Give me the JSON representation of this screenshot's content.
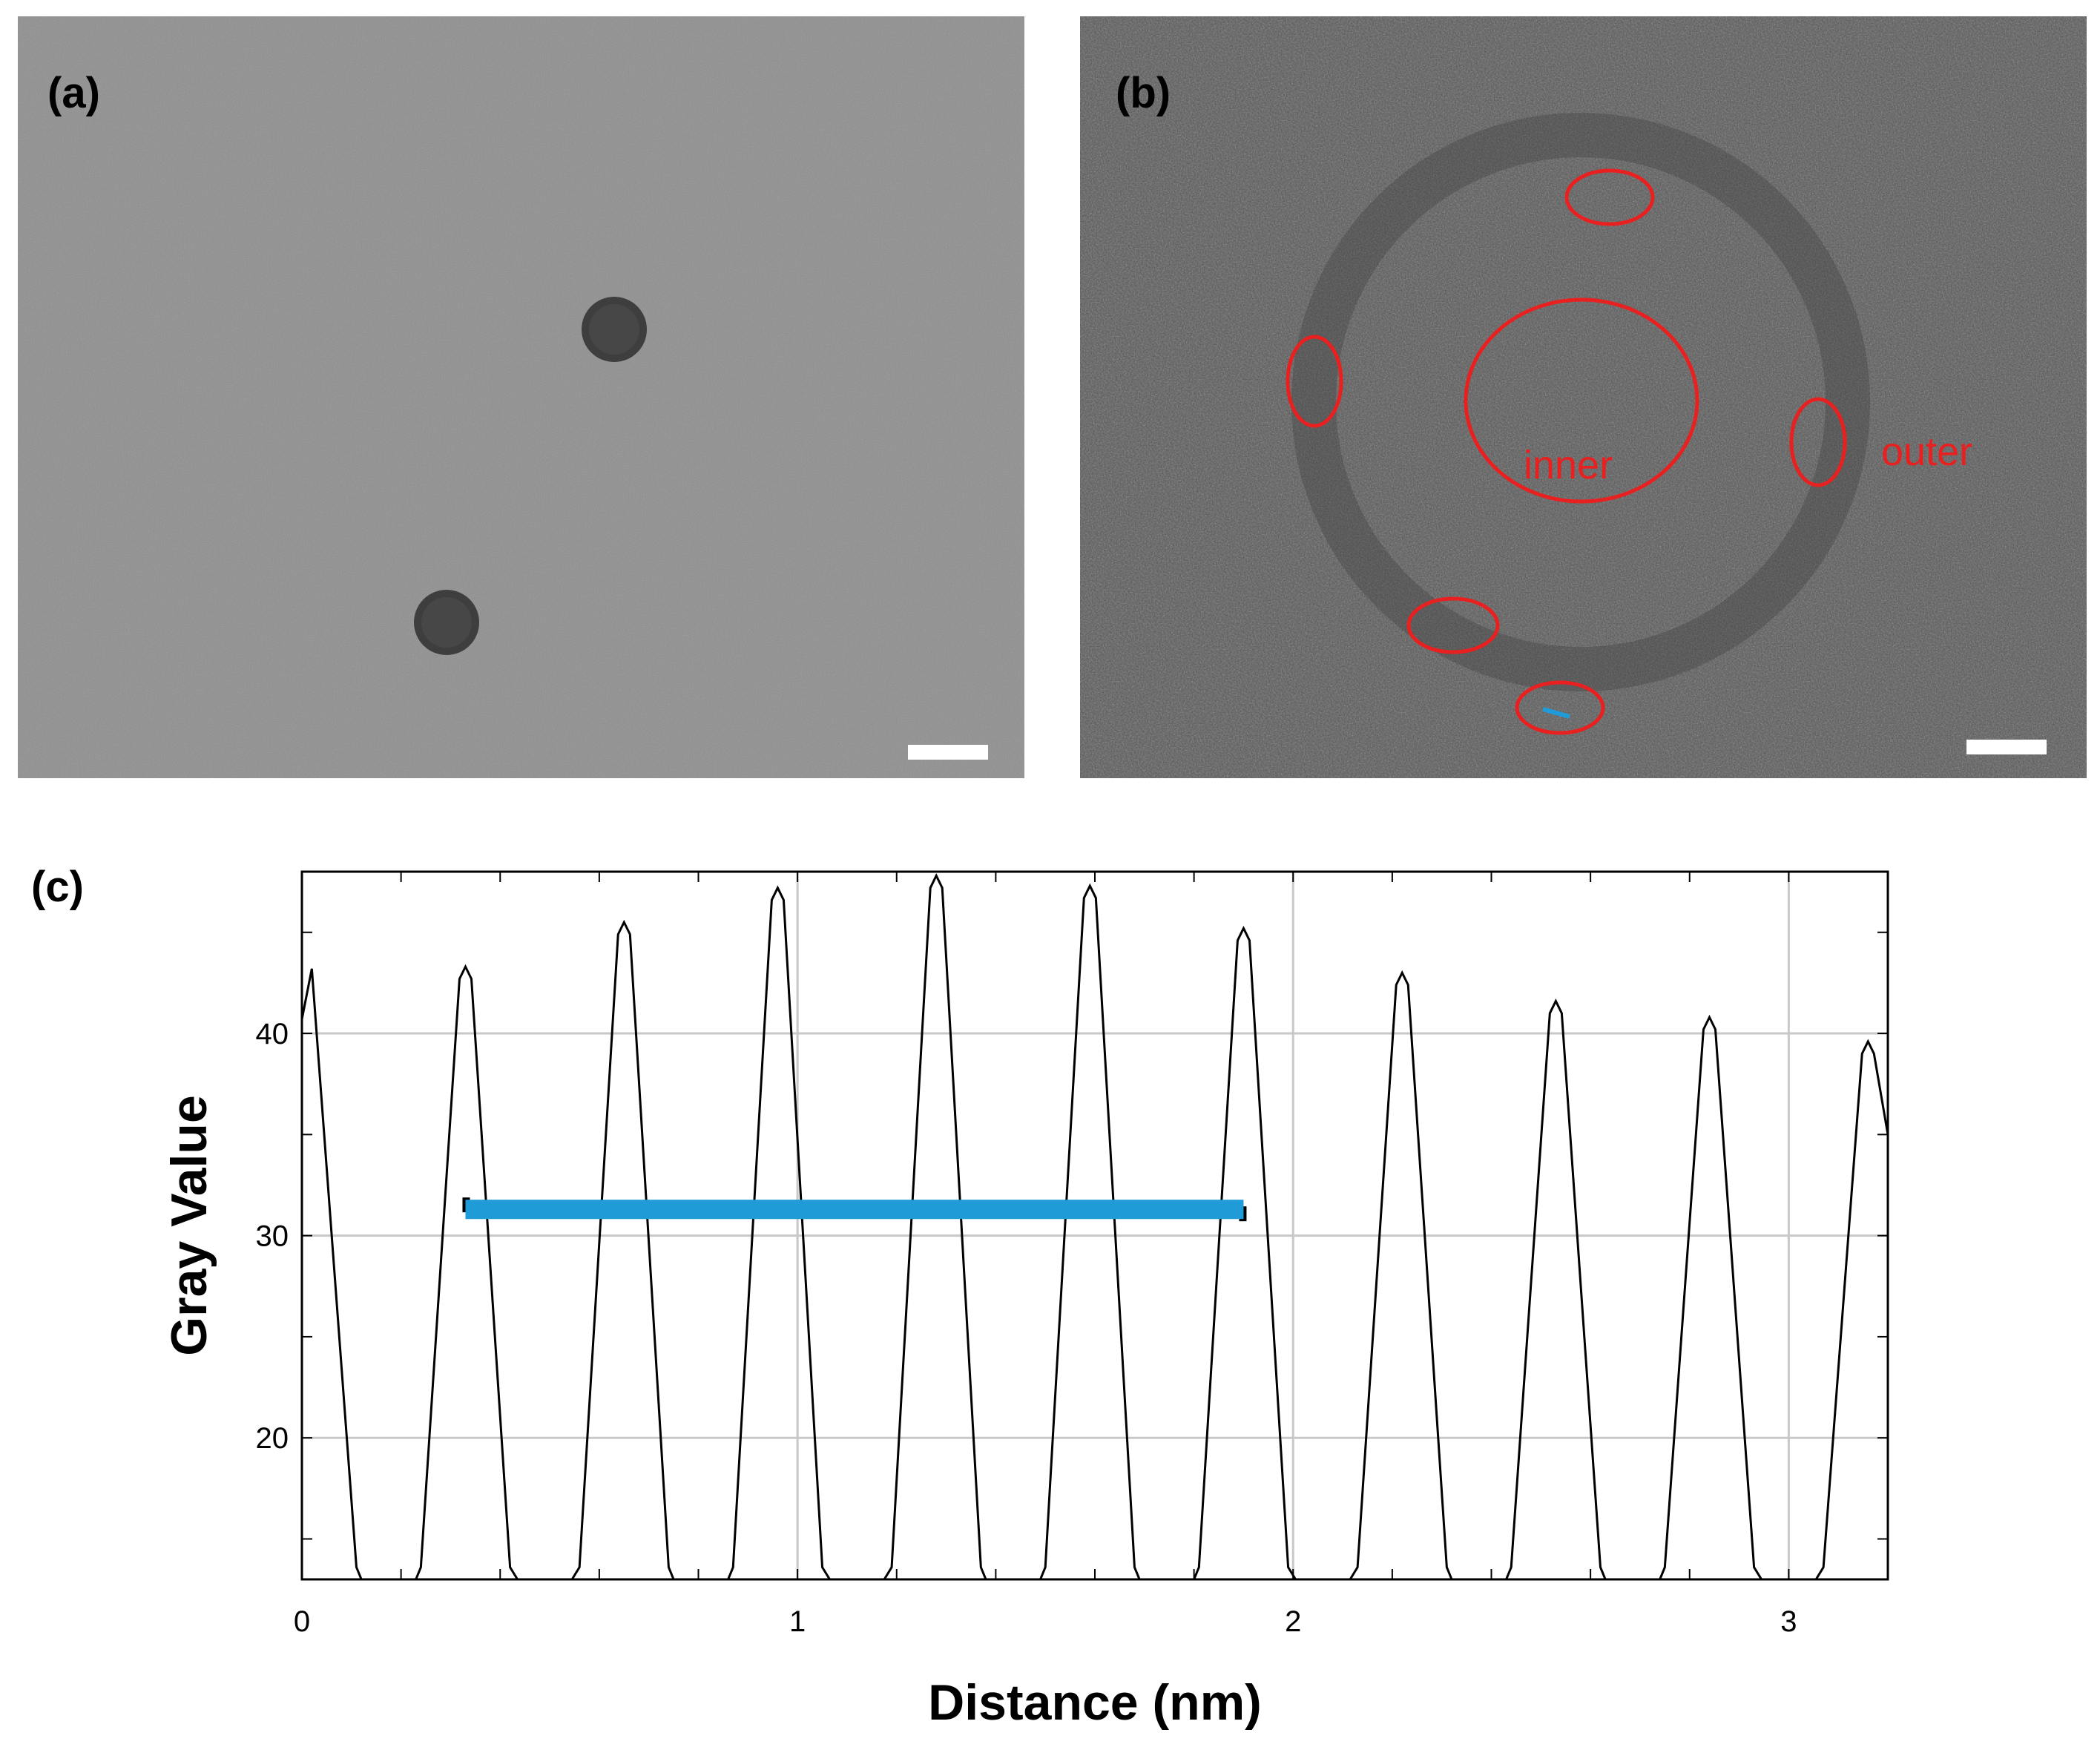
{
  "figure": {
    "panel_a": {
      "label": "(a)"
    },
    "panel_b": {
      "label": "(b)",
      "roi_inner": "inner",
      "roi_outer": "outer"
    },
    "panel_c": {
      "label": "(c)"
    }
  },
  "colors": {
    "roi": "#e8201f",
    "measure_line": "#1f9bd8",
    "profile_line": "#000000",
    "grid": "#c8c8c8"
  },
  "chart_data": {
    "type": "line",
    "xlabel": "Distance (nm)",
    "ylabel": "Gray Value",
    "xlim": [
      0,
      3.2
    ],
    "ylim": [
      13,
      48
    ],
    "xticks": [
      0,
      1,
      2,
      3
    ],
    "yticks": [
      20,
      30,
      40
    ],
    "grid": true,
    "series": [
      {
        "peaks": [
          {
            "x": 0.02,
            "y": 43.2
          },
          {
            "x": 0.33,
            "y": 43.3
          },
          {
            "x": 0.65,
            "y": 45.5
          },
          {
            "x": 0.96,
            "y": 47.2
          },
          {
            "x": 1.28,
            "y": 47.8
          },
          {
            "x": 1.59,
            "y": 47.3
          },
          {
            "x": 1.9,
            "y": 45.2
          },
          {
            "x": 2.22,
            "y": 43.0
          },
          {
            "x": 2.53,
            "y": 41.6
          },
          {
            "x": 2.84,
            "y": 40.8
          },
          {
            "x": 3.16,
            "y": 39.6
          }
        ],
        "baseline": 13.0
      }
    ],
    "annotations": [
      {
        "type": "horizontal_segment",
        "x_start": 0.33,
        "x_end": 1.9,
        "y": 31.3
      }
    ]
  }
}
